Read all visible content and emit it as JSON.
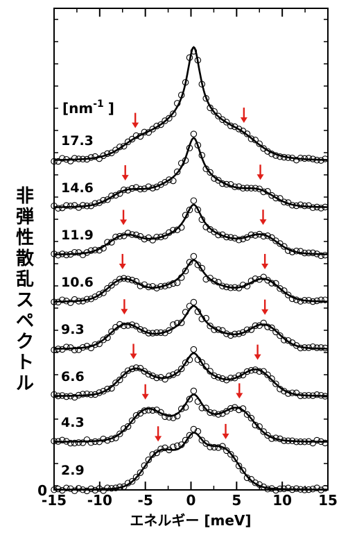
{
  "chart_data": {
    "type": "line",
    "xlabel": "エネルギー [meV]",
    "ylabel": "非弾性散乱スペクトル",
    "xlim": [
      -15,
      15
    ],
    "xticks": [
      -15,
      -10,
      -5,
      0,
      5,
      10,
      15
    ],
    "xtick_labels": [
      "-15",
      "-10",
      "-5",
      "0",
      "5",
      "10",
      "15"
    ],
    "y_origin_label": "0",
    "legend_unit_label": "[nm",
    "legend_unit_sup": "-1",
    "legend_unit_close": "]",
    "arrow_color": "#e0201a",
    "series": [
      {
        "name": "17.3",
        "arrows": [
          -6.1,
          5.8
        ]
      },
      {
        "name": "14.6",
        "arrows": [
          -7.2,
          7.6
        ]
      },
      {
        "name": "11.9",
        "arrows": [
          -7.4,
          7.9
        ]
      },
      {
        "name": "10.6",
        "arrows": [
          -7.5,
          8.1
        ]
      },
      {
        "name": "9.3",
        "arrows": [
          -7.3,
          8.1
        ]
      },
      {
        "name": "6.6",
        "arrows": [
          -6.3,
          7.3
        ]
      },
      {
        "name": "4.3",
        "arrows": [
          -5.0,
          5.3
        ]
      },
      {
        "name": "2.9",
        "arrows": [
          -3.6,
          3.8
        ]
      }
    ]
  }
}
